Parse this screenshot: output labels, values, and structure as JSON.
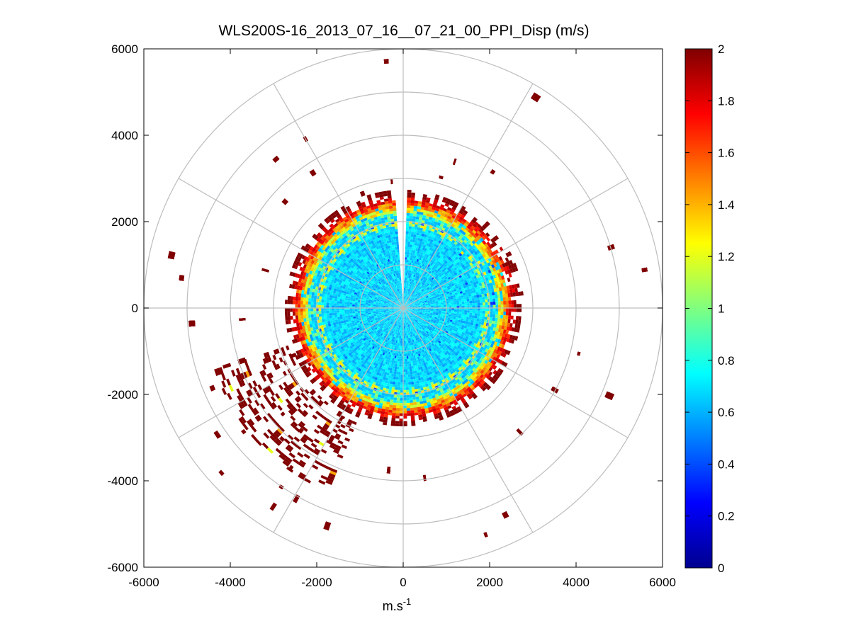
{
  "chart_data": {
    "type": "heatmap",
    "subtype": "polar-ppi",
    "title": "WLS200S-16_2013_07_16__07_21_00_PPI_Disp (m/s)",
    "xlabel": {
      "base": "m.s",
      "sup": "-1"
    },
    "ylabel": "",
    "xlim": [
      -6000,
      6000
    ],
    "ylim": [
      -6000,
      6000
    ],
    "xticks": [
      "-6000",
      "-4000",
      "-2000",
      "0",
      "2000",
      "4000",
      "6000"
    ],
    "yticks": [
      "6000",
      "4000",
      "2000",
      "0",
      "-2000",
      "-4000",
      "-6000"
    ],
    "grid": "polar",
    "polar_grid": {
      "ring_radii": [
        1000,
        2000,
        3000,
        4000,
        5000,
        6000
      ],
      "spoke_angles_deg": [
        0,
        30,
        60,
        90,
        120,
        150,
        180,
        210,
        240,
        270,
        300,
        330
      ]
    },
    "colorbar": {
      "colormap": "jet",
      "range": [
        0,
        2
      ],
      "ticks": [
        "0",
        "0.2",
        "0.4",
        "0.6",
        "0.8",
        "1",
        "1.2",
        "1.4",
        "1.6",
        "1.8",
        "2"
      ]
    },
    "data_description": {
      "dense_core_radius": 2400,
      "core_values": [
        0.6,
        0.8
      ],
      "edge_band_radius": [
        2200,
        2800
      ],
      "edge_values": [
        1.0,
        2.0
      ],
      "missing_sector_deg": [
        87,
        93
      ],
      "sparse_outer_value": 2.0
    }
  }
}
